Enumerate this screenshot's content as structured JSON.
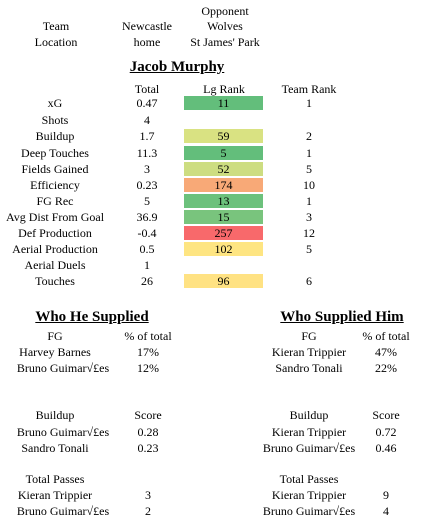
{
  "match": {
    "opponent_header": "Opponent",
    "team_label": "Team",
    "location_label": "Location",
    "team": "Newcastle",
    "location": "home",
    "opponent": "Wolves",
    "venue": "St James' Park"
  },
  "player": {
    "name": "Jacob Murphy"
  },
  "stats_headers": {
    "total": "Total",
    "lg_rank": "Lg Rank",
    "team_rank": "Team Rank"
  },
  "stats": [
    {
      "label": "xG",
      "total": "0.47",
      "lg_rank": "11",
      "team_rank": "1",
      "color": "#63BE7B"
    },
    {
      "label": "Shots",
      "total": "4",
      "lg_rank": "",
      "team_rank": "",
      "color": ""
    },
    {
      "label": "Buildup",
      "total": "1.7",
      "lg_rank": "59",
      "team_rank": "2",
      "color": "#D9E282"
    },
    {
      "label": "Deep Touches",
      "total": "11.3",
      "lg_rank": "5",
      "team_rank": "1",
      "color": "#63BE7B"
    },
    {
      "label": "Fields Gained",
      "total": "3",
      "lg_rank": "52",
      "team_rank": "5",
      "color": "#CDDD81"
    },
    {
      "label": "Efficiency",
      "total": "0.23",
      "lg_rank": "174",
      "team_rank": "10",
      "color": "#F8A977"
    },
    {
      "label": "FG Rec",
      "total": "5",
      "lg_rank": "13",
      "team_rank": "1",
      "color": "#6CC17C"
    },
    {
      "label": "Avg Dist From Goal",
      "total": "36.9",
      "lg_rank": "15",
      "team_rank": "3",
      "color": "#79C47D"
    },
    {
      "label": "Def Production",
      "total": "-0.4",
      "lg_rank": "257",
      "team_rank": "12",
      "color": "#F8696B"
    },
    {
      "label": "Aerial Production",
      "total": "0.5",
      "lg_rank": "102",
      "team_rank": "5",
      "color": "#FEE582"
    },
    {
      "label": "Aerial Duels",
      "total": "1",
      "lg_rank": "",
      "team_rank": "",
      "color": ""
    },
    {
      "label": "Touches",
      "total": "26",
      "lg_rank": "96",
      "team_rank": "6",
      "color": "#FFE283"
    }
  ],
  "supplied": {
    "title": "Who He Supplied",
    "fg_header": "FG",
    "fg_col": "% of total",
    "fg_rows": [
      {
        "name": "Harvey Barnes",
        "value": "17%"
      },
      {
        "name": "Bruno Guimar√£es",
        "value": "12%"
      }
    ],
    "buildup_header": "Buildup",
    "buildup_col": "Score",
    "buildup_rows": [
      {
        "name": "Bruno Guimar√£es",
        "value": "0.28"
      },
      {
        "name": "Sandro Tonali",
        "value": "0.23"
      }
    ],
    "passes_header": "Total Passes",
    "passes_rows": [
      {
        "name": "Kieran Trippier",
        "value": "3"
      },
      {
        "name": "Bruno Guimar√£es",
        "value": "2"
      }
    ]
  },
  "supplied_him": {
    "title": "Who Supplied Him",
    "fg_header": "FG",
    "fg_col": "% of total",
    "fg_rows": [
      {
        "name": "Kieran Trippier",
        "value": "47%"
      },
      {
        "name": "Sandro Tonali",
        "value": "22%"
      }
    ],
    "buildup_header": "Buildup",
    "buildup_col": "Score",
    "buildup_rows": [
      {
        "name": "Kieran Trippier",
        "value": "0.72"
      },
      {
        "name": "Bruno Guimar√£es",
        "value": "0.46"
      }
    ],
    "passes_header": "Total Passes",
    "passes_rows": [
      {
        "name": "Kieran Trippier",
        "value": "9"
      },
      {
        "name": "Bruno Guimar√£es",
        "value": "4"
      }
    ]
  }
}
